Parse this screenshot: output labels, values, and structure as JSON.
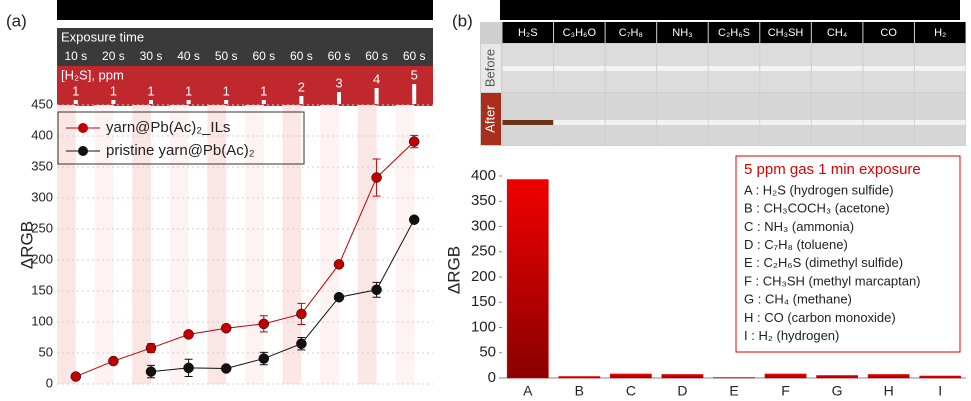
{
  "chart_data": [
    {
      "type": "line",
      "panel_label": "(a)",
      "header_title": "Exposure time",
      "categories": [
        "10 s",
        "20 s",
        "30 s",
        "40 s",
        "50 s",
        "60 s",
        "60 s",
        "60 s",
        "60 s",
        "60 s"
      ],
      "ppm_title": "[H₂S], ppm",
      "ppm": [
        1,
        1,
        1,
        1,
        1,
        1,
        2,
        3,
        4,
        5
      ],
      "y_label": "ΔRGB",
      "ylim": [
        0,
        450
      ],
      "yticks": [
        0,
        50,
        100,
        150,
        200,
        250,
        300,
        350,
        400,
        450
      ],
      "series": [
        {
          "name": "yarn@Pb(Ac)₂_ILs",
          "color": "#c00000",
          "values": [
            12,
            37,
            58,
            80,
            90,
            97,
            113,
            193,
            333,
            391
          ],
          "errors": [
            3,
            2,
            7,
            3,
            3,
            13,
            17,
            3,
            30,
            10
          ]
        },
        {
          "name": "pristine yarn@Pb(Ac)₂",
          "color": "#111111",
          "values": [
            null,
            null,
            20,
            26,
            25,
            41,
            65,
            140,
            152,
            265
          ],
          "errors": [
            null,
            null,
            10,
            14,
            3,
            10,
            10,
            3,
            12,
            3
          ]
        }
      ]
    },
    {
      "type": "bar",
      "panel_label": "(b)",
      "photo_gases": [
        "H₂S",
        "C₃H₆O",
        "C₇H₈",
        "NH₃",
        "C₂H₆S",
        "CH₃SH",
        "CH₄",
        "CO",
        "H₂"
      ],
      "photo_rows": [
        "Before",
        "After"
      ],
      "y_label": "ΔRGB",
      "categories": [
        "A",
        "B",
        "C",
        "D",
        "E",
        "F",
        "G",
        "H",
        "I"
      ],
      "values": [
        393,
        3,
        8,
        7,
        1,
        8,
        5,
        7,
        4
      ],
      "color": "#e00000",
      "ylim": [
        0,
        400
      ],
      "yticks": [
        0,
        50,
        100,
        150,
        200,
        250,
        300,
        350,
        400
      ],
      "legend_title": "5 ppm gas 1 min exposure",
      "legend_items": [
        "A : H₂S (hydrogen sulfide)",
        "B : CH₃COCH₃ (acetone)",
        "C : NH₃ (ammonia)",
        "D : C₇H₈ (toluene)",
        "E : C₂H₆S (dimethyl sulfide)",
        "F : CH₃SH (methyl marcaptan)",
        "G : CH₄ (methane)",
        "H : CO (carbon monoxide)",
        "I : H₂ (hydrogen)"
      ]
    }
  ]
}
